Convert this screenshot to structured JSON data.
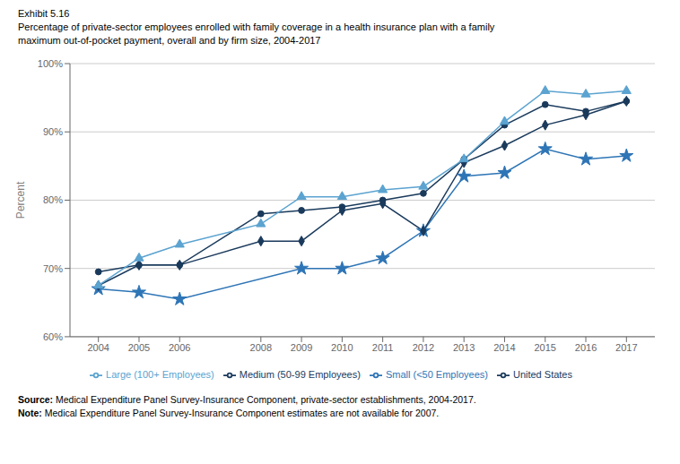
{
  "chart_data": {
    "type": "line",
    "title": [
      "Percentage of private-sector employees enrolled with family coverage in a health insurance plan with a family",
      "maximum out-of-pocket payment, overall and by firm size, 2004-2017"
    ],
    "annotations": [
      "Exhibit 5.16",
      "Source: Medical Expenditure Panel Survey-Insurance Component, private-sector establishments, 2004-2017.",
      "Note: Medical Expenditure Panel Survey-Insurance Component estimates are not available for 2007."
    ],
    "y_label": "Percent",
    "x": [
      2004,
      2005,
      2006,
      2008,
      2009,
      2010,
      2011,
      2012,
      2013,
      2014,
      2015,
      2016,
      2017
    ],
    "series": [
      {
        "name": "United States",
        "color": "#1a3a5c",
        "marker": "circle",
        "values": [
          69.5,
          70.5,
          70.5,
          78.0,
          78.5,
          79.0,
          80.0,
          81.0,
          86.0,
          91.0,
          94.0,
          93.0,
          94.5
        ]
      },
      {
        "name": "Small (<50 Employees)",
        "color": "#2e75b6",
        "marker": "star",
        "values": [
          67.0,
          66.5,
          65.5,
          null,
          70.0,
          70.0,
          71.5,
          75.5,
          83.5,
          84.0,
          87.5,
          86.0,
          86.5
        ]
      },
      {
        "name": "Medium (50-99 Employees)",
        "color": "#1a3a5c",
        "marker": "diamond",
        "values": [
          67.5,
          70.5,
          70.5,
          74.0,
          74.0,
          78.5,
          79.5,
          75.5,
          85.5,
          88.0,
          91.0,
          92.5,
          94.5
        ]
      },
      {
        "name": "Large (100+ Employees)",
        "color": "#5ba3d0",
        "marker": "triangle",
        "values": [
          67.5,
          71.5,
          73.5,
          76.5,
          80.5,
          80.5,
          81.5,
          82.0,
          86.0,
          91.5,
          96.0,
          95.5,
          96.0
        ]
      }
    ],
    "xlim": [
      2003.3,
      2017.7
    ],
    "xticks": [
      2004,
      2005,
      2006,
      2008,
      2009,
      2010,
      2011,
      2012,
      2013,
      2014,
      2015,
      2016,
      2017
    ],
    "ylim": [
      60,
      100
    ],
    "yticks": [
      {
        "value": 60,
        "label": "60%"
      },
      {
        "value": 70,
        "label": "70%"
      },
      {
        "value": 80,
        "label": "80%"
      },
      {
        "value": 90,
        "label": "90%"
      },
      {
        "value": 100,
        "label": "100%"
      }
    ],
    "grid": true,
    "legend": "bottom"
  }
}
